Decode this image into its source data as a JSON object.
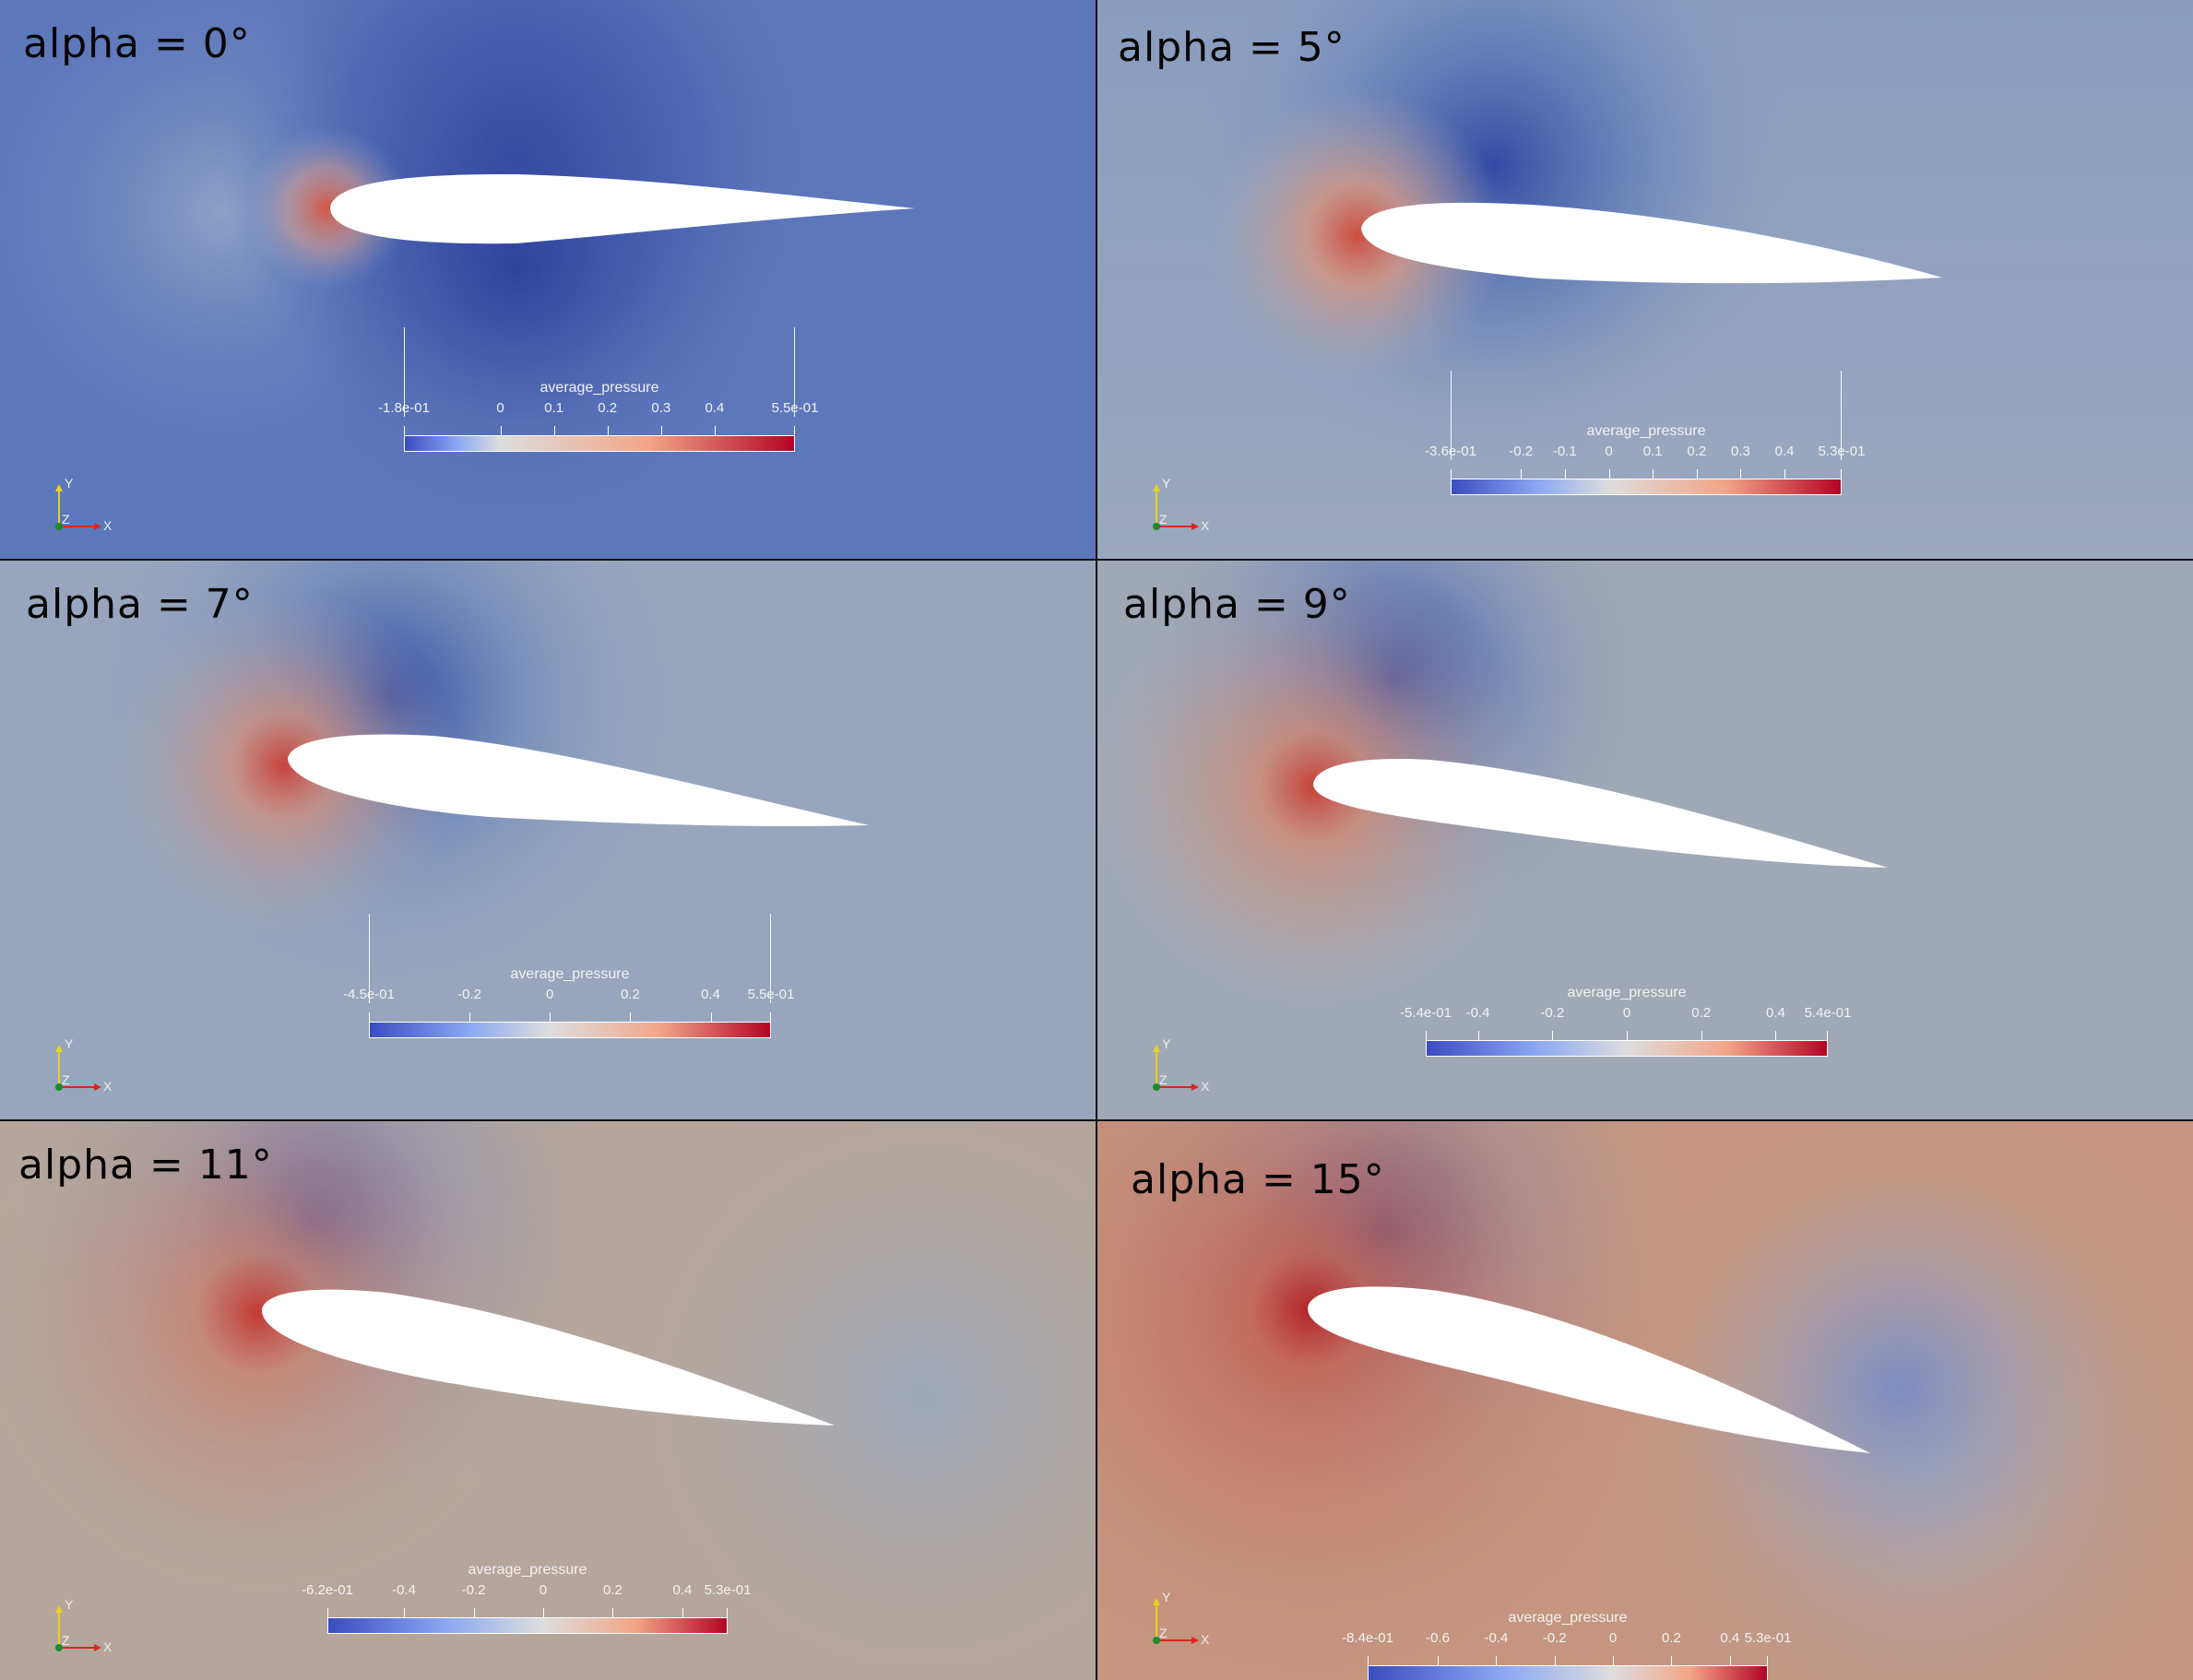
{
  "panels": [
    {
      "alpha": "alpha = 0°",
      "colorbar": {
        "title": "average_pressure",
        "min_label": "-1.8e-01",
        "max_label": "5.5e-01",
        "min": -0.18,
        "max": 0.55,
        "ticks": [
          {
            "value": 0,
            "label": "0"
          },
          {
            "value": 0.1,
            "label": "0.1"
          },
          {
            "value": 0.2,
            "label": "0.2"
          },
          {
            "value": 0.3,
            "label": "0.3"
          },
          {
            "value": 0.4,
            "label": "0.4"
          }
        ]
      },
      "background": "#5a74b9"
    },
    {
      "alpha": "alpha = 5°",
      "colorbar": {
        "title": "average_pressure",
        "min_label": "-3.6e-01",
        "max_label": "5.3e-01",
        "min": -0.36,
        "max": 0.53,
        "ticks": [
          {
            "value": -0.2,
            "label": "-0.2"
          },
          {
            "value": -0.1,
            "label": "-0.1"
          },
          {
            "value": 0,
            "label": "0"
          },
          {
            "value": 0.1,
            "label": "0.1"
          },
          {
            "value": 0.2,
            "label": "0.2"
          },
          {
            "value": 0.3,
            "label": "0.3"
          },
          {
            "value": 0.4,
            "label": "0.4"
          }
        ]
      },
      "background": "#8d9fbe"
    },
    {
      "alpha": "alpha = 7°",
      "colorbar": {
        "title": "average_pressure",
        "min_label": "-4.5e-01",
        "max_label": "5.5e-01",
        "min": -0.45,
        "max": 0.55,
        "ticks": [
          {
            "value": -0.2,
            "label": "-0.2"
          },
          {
            "value": 0,
            "label": "0"
          },
          {
            "value": 0.2,
            "label": "0.2"
          },
          {
            "value": 0.4,
            "label": "0.4"
          }
        ]
      },
      "background": "#95a4bc"
    },
    {
      "alpha": "alpha = 9°",
      "colorbar": {
        "title": "average_pressure",
        "min_label": "-5.4e-01",
        "max_label": "5.4e-01",
        "min": -0.54,
        "max": 0.54,
        "ticks": [
          {
            "value": -0.4,
            "label": "-0.4"
          },
          {
            "value": -0.2,
            "label": "-0.2"
          },
          {
            "value": 0,
            "label": "0"
          },
          {
            "value": 0.2,
            "label": "0.2"
          },
          {
            "value": 0.4,
            "label": "0.4"
          }
        ]
      },
      "background": "#a3a9b4"
    },
    {
      "alpha": "alpha = 11°",
      "colorbar": {
        "title": "average_pressure",
        "min_label": "-6.2e-01",
        "max_label": "5.3e-01",
        "min": -0.62,
        "max": 0.53,
        "ticks": [
          {
            "value": -0.4,
            "label": "-0.4"
          },
          {
            "value": -0.2,
            "label": "-0.2"
          },
          {
            "value": 0,
            "label": "0"
          },
          {
            "value": 0.2,
            "label": "0.2"
          },
          {
            "value": 0.4,
            "label": "0.4"
          }
        ]
      },
      "background": "#b3a89f"
    },
    {
      "alpha": "alpha = 15°",
      "colorbar": {
        "title": "average_pressure",
        "min_label": "-8.4e-01",
        "max_label": "5.3e-01",
        "min": -0.84,
        "max": 0.53,
        "ticks": [
          {
            "value": -0.6,
            "label": "-0.6"
          },
          {
            "value": -0.4,
            "label": "-0.4"
          },
          {
            "value": -0.2,
            "label": "-0.2"
          },
          {
            "value": 0,
            "label": "0"
          },
          {
            "value": 0.2,
            "label": "0.2"
          },
          {
            "value": 0.4,
            "label": "0.4"
          }
        ]
      },
      "background": "#c39380"
    }
  ],
  "axes_labels": {
    "y": "Y",
    "z": "Z",
    "x": "X"
  },
  "colormap": {
    "low": "#3b4cc0",
    "mid": "#dddddd",
    "high": "#b40426"
  }
}
